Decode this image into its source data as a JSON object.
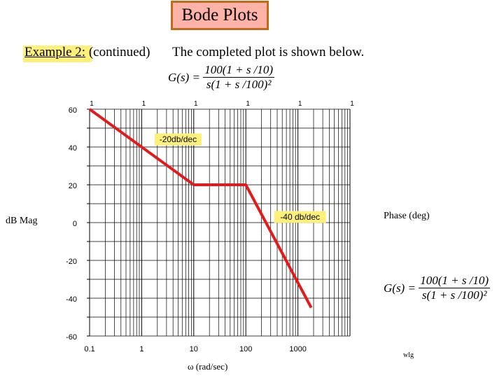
{
  "slide": {
    "title": "Bode Plots",
    "example_label": "Example 2:",
    "example_suffix": "(continued)",
    "completed_text": "The completed plot is shown below.",
    "tf_top": {
      "lhs": "G(s) =",
      "numerator": "100(1 + s /10)",
      "denominator": "s(1 + s /100)²"
    },
    "tf_right": {
      "lhs": "G(s) =",
      "numerator": "100(1 + s /10)",
      "denominator": "s(1 + s /100)²"
    },
    "mag_label": "dB Mag",
    "phase_label": "Phase (deg)",
    "credit": "wlg",
    "colors": {
      "title_bg": "#ffb2a8",
      "title_border": "#c06a1c",
      "highlight": "#fff07a",
      "line": "#e31a1a",
      "grid": "#000000"
    }
  },
  "chart_data": {
    "type": "line",
    "xscale": "log",
    "xlim": [
      0.1,
      10000
    ],
    "ylim": [
      -60,
      60
    ],
    "xlabel": "ω (rad/sec)",
    "ylabel": "dB Mag",
    "grid": true,
    "x_tick_labels": [
      "0.1",
      "1",
      "10",
      "100",
      "1000"
    ],
    "y_tick_labels": [
      "60",
      "40",
      "20",
      "0",
      "-20",
      "-40",
      "-60"
    ],
    "top_tick_labels": [
      "1",
      "1",
      "1",
      "1",
      "1",
      "1"
    ],
    "series": [
      {
        "x": [
          0.1,
          10,
          100,
          1800
        ],
        "y": [
          60,
          20,
          20,
          -45
        ]
      }
    ],
    "annotations": [
      {
        "text": "-20db/dec",
        "x": 5,
        "y": 44
      },
      {
        "text": "-40 db/dec",
        "x": 1100,
        "y": 3
      }
    ]
  }
}
